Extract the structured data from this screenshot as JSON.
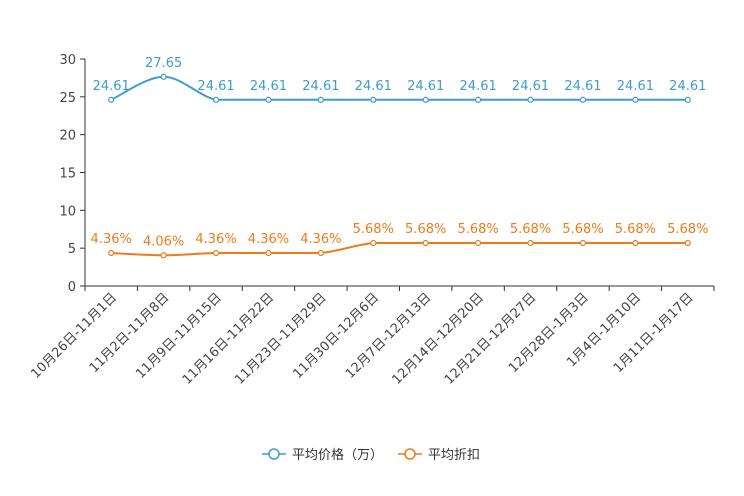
{
  "chart_data": {
    "type": "line",
    "title": "",
    "xlabel": "",
    "ylabel": "",
    "ylim": [
      0,
      30
    ],
    "yticks": [
      0,
      5,
      10,
      15,
      20,
      25,
      30
    ],
    "grid": false,
    "legend_position": "bottom-center",
    "categories": [
      "10月26日-11月1日",
      "11月2日-11月8日",
      "11月9日-11月15日",
      "11月16日-11月22日",
      "11月23日-11月29日",
      "11月30日-12月6日",
      "12月7日-12月13日",
      "12月14日-12月20日",
      "12月21日-12月27日",
      "12月28日-1月3日",
      "1月4日-1月10日",
      "1月11日-1月17日"
    ],
    "series": [
      {
        "name": "平均价格（万）",
        "color": "#3c9dd0",
        "values": [
          24.61,
          27.65,
          24.61,
          24.61,
          24.61,
          24.61,
          24.61,
          24.61,
          24.61,
          24.61,
          24.61,
          24.61
        ],
        "labels": [
          "24.61",
          "27.65",
          "24.61",
          "24.61",
          "24.61",
          "24.61",
          "24.61",
          "24.61",
          "24.61",
          "24.61",
          "24.61",
          "24.61"
        ]
      },
      {
        "name": "平均折扣",
        "color": "#f07b1a",
        "values": [
          4.36,
          4.06,
          4.36,
          4.36,
          4.36,
          5.68,
          5.68,
          5.68,
          5.68,
          5.68,
          5.68,
          5.68
        ],
        "labels": [
          "4.36%",
          "4.06%",
          "4.36%",
          "4.36%",
          "4.36%",
          "5.68%",
          "5.68%",
          "5.68%",
          "5.68%",
          "5.68%",
          "5.68%",
          "5.68%"
        ]
      }
    ]
  }
}
